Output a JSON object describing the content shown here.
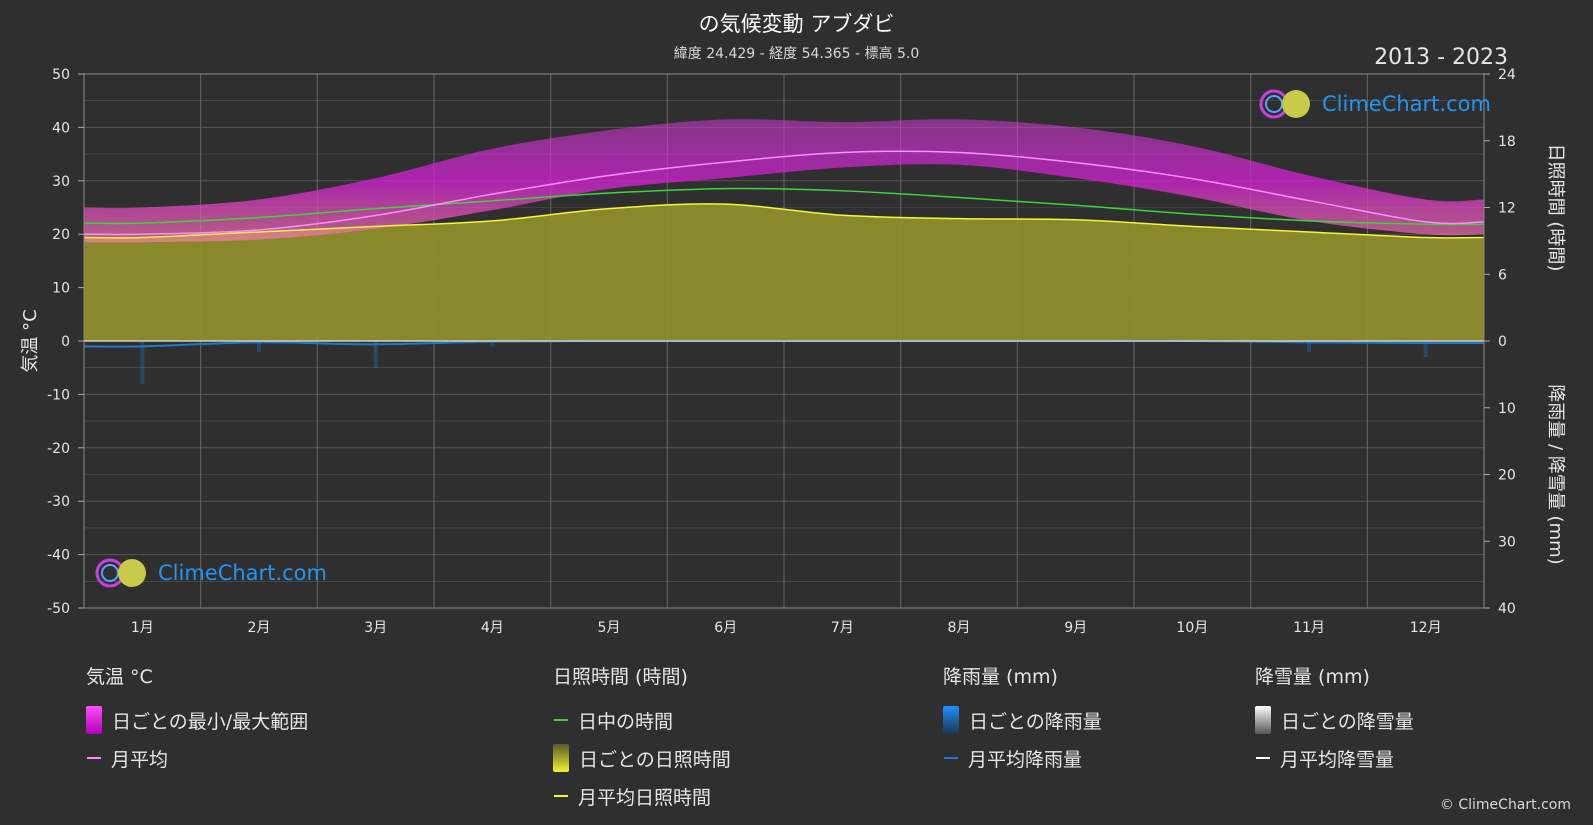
{
  "header": {
    "title": "の気候変動 アブダビ",
    "subtitle": "緯度 24.429 - 経度 54.365 - 標高 5.0",
    "years": "2013 - 2023"
  },
  "watermark": {
    "text": "ClimeChart.com"
  },
  "copyright": "© ClimeChart.com",
  "legend": {
    "temperature": {
      "head": "気温 °C",
      "range": "日ごとの最小/最大範囲",
      "avg": "月平均"
    },
    "sunshine": {
      "head": "日照時間 (時間)",
      "daylight": "日中の時間",
      "daily": "日ごとの日照時間",
      "avg": "月平均日照時間"
    },
    "rain": {
      "head": "降雨量 (mm)",
      "daily": "日ごとの降雨量",
      "avg": "月平均降雨量"
    },
    "snow": {
      "head": "降雪量 (mm)",
      "daily": "日ごとの降雪量",
      "avg": "月平均降雪量"
    }
  },
  "colors": {
    "background": "#2f2f2f",
    "temp_range": "#d21fd4",
    "temp_avg": "#ff8cff",
    "daylight": "#39d639",
    "sunshine_fill": "#8e8e2c",
    "sunshine_avg": "#f5f53a",
    "rain": "#1f78c8",
    "snow": "#ffffff",
    "logo": "#2196f3"
  },
  "chart_data": {
    "type": "line",
    "categories": [
      "1月",
      "2月",
      "3月",
      "4月",
      "5月",
      "6月",
      "7月",
      "8月",
      "9月",
      "10月",
      "11月",
      "12月"
    ],
    "y_left": {
      "label": "気温 °C",
      "ticks": [
        50,
        40,
        30,
        20,
        10,
        0,
        -10,
        -20,
        -30,
        -40,
        -50
      ],
      "range": [
        -50,
        50
      ]
    },
    "y_right_top": {
      "label": "日照時間 (時間)",
      "ticks": [
        24,
        18,
        12,
        6,
        0
      ],
      "range": [
        0,
        24
      ]
    },
    "y_right_bottom": {
      "label": "降雨量 / 降雪量 (mm)",
      "ticks": [
        0,
        10,
        20,
        30,
        40
      ],
      "range": [
        0,
        40
      ]
    },
    "grid": true,
    "series": [
      {
        "name": "月平均",
        "unit": "°C",
        "values": [
          20.0,
          20.8,
          23.5,
          27.5,
          31.0,
          33.5,
          35.3,
          35.3,
          33.4,
          30.4,
          26.3,
          22.3
        ]
      },
      {
        "name": "日中の時間",
        "unit": "時間",
        "values": [
          10.6,
          11.1,
          11.9,
          12.6,
          13.3,
          13.7,
          13.5,
          12.9,
          12.2,
          11.4,
          10.8,
          10.5
        ]
      },
      {
        "name": "月平均日照時間",
        "unit": "時間",
        "values": [
          9.3,
          9.8,
          10.3,
          10.8,
          11.9,
          12.3,
          11.3,
          11.0,
          10.9,
          10.3,
          9.8,
          9.3
        ]
      },
      {
        "name": "月平均降雨量",
        "unit": "mm",
        "values": [
          0.8,
          0.2,
          0.5,
          0.1,
          0.0,
          0.0,
          0.0,
          0.0,
          0.0,
          0.0,
          0.2,
          0.3
        ]
      }
    ],
    "temp_daily_range": {
      "min": [
        18.5,
        19.0,
        21.0,
        24.5,
        28.5,
        30.5,
        32.5,
        33.0,
        30.5,
        27.0,
        22.5,
        20.0
      ],
      "max": [
        25.0,
        26.5,
        30.5,
        36.0,
        39.5,
        41.5,
        41.0,
        41.5,
        40.0,
        36.5,
        31.0,
        26.5
      ]
    }
  }
}
